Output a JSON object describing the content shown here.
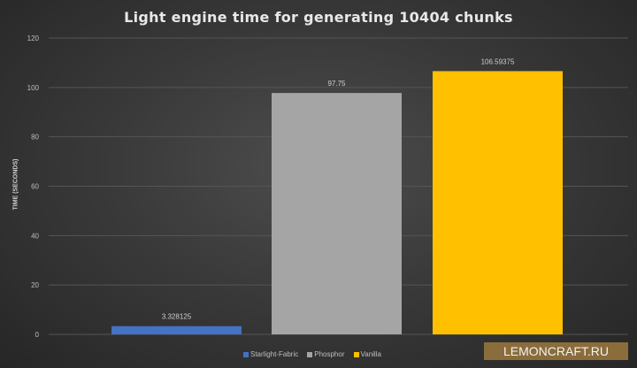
{
  "chart_data": {
    "type": "bar",
    "title": "Light engine time for generating 10404 chunks",
    "ylabel": "TIME (SECONDS)",
    "xlabel": "",
    "ylim": [
      0,
      120
    ],
    "yticks": [
      0,
      20,
      40,
      60,
      80,
      100,
      120
    ],
    "grid": true,
    "legend_position": "bottom",
    "series": [
      {
        "name": "Starlight-Fabric",
        "value": 3.328125,
        "label": "3.328125",
        "color": "#4472c4"
      },
      {
        "name": "Phosphor",
        "value": 97.75,
        "label": "97.75",
        "color": "#a5a5a5"
      },
      {
        "name": "Vanilla",
        "value": 106.59375,
        "label": "106.59375",
        "color": "#ffc000"
      }
    ]
  },
  "watermark": "LEMONCRAFT.RU"
}
